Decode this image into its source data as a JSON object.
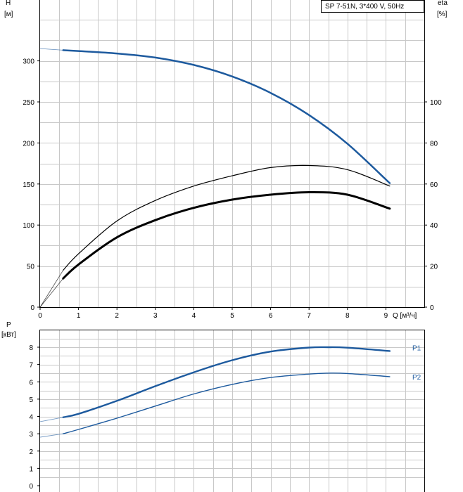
{
  "chart_data": [
    {
      "type": "line",
      "title": "SP 7-51N, 3*400 V, 50Hz",
      "xlabel": "Q [м³/ч]",
      "ylabel": "H\n[м]",
      "y2label": "eta\n[%]",
      "xlim": [
        0,
        10
      ],
      "ylim": [
        0,
        375
      ],
      "y2lim": [
        0,
        150
      ],
      "x_ticks": [
        0,
        1,
        2,
        3,
        4,
        5,
        6,
        7,
        8,
        9
      ],
      "y_ticks": [
        0,
        50,
        100,
        150,
        200,
        250,
        300
      ],
      "y2_ticks": [
        0,
        20,
        40,
        60,
        80,
        100
      ],
      "grid": true,
      "series": [
        {
          "axis": "left",
          "color": "#1d5a9e",
          "x": [
            0,
            0.6,
            1,
            2,
            3,
            4,
            5,
            6,
            7,
            8,
            9.1
          ],
          "y": [
            315,
            313,
            312,
            309,
            304,
            295,
            281,
            261,
            234,
            199,
            151
          ]
        },
        {
          "axis": "right",
          "color": "#000000",
          "x": [
            0,
            0.6,
            1,
            2,
            3,
            4,
            5,
            6,
            7,
            8,
            9.1
          ],
          "y": [
            0,
            18,
            26,
            42,
            52,
            59,
            64,
            68,
            69,
            67,
            59
          ]
        },
        {
          "axis": "left",
          "color": "#000000",
          "x": [
            0,
            0.6,
            1,
            2,
            3,
            4,
            5,
            6,
            7,
            8,
            9.1
          ],
          "y": [
            0,
            35,
            52,
            85,
            106,
            121,
            131,
            137,
            140,
            137,
            120
          ]
        }
      ]
    },
    {
      "type": "line",
      "title": "",
      "xlabel": "",
      "ylabel": "P\n[кВт]",
      "xlim": [
        0,
        10
      ],
      "ylim": [
        0,
        9
      ],
      "y_ticks": [
        0,
        1,
        2,
        3,
        4,
        5,
        6,
        7,
        8
      ],
      "grid": true,
      "series": [
        {
          "name": "P1",
          "color": "#1d5a9e",
          "x": [
            0,
            0.6,
            1,
            2,
            3,
            4,
            5,
            6,
            7,
            7.5,
            8,
            9.1
          ],
          "y": [
            3.7,
            3.95,
            4.15,
            4.9,
            5.75,
            6.55,
            7.25,
            7.75,
            7.98,
            8.0,
            7.97,
            7.78
          ]
        },
        {
          "name": "P2",
          "color": "#1d5a9e",
          "x": [
            0,
            0.6,
            1,
            2,
            3,
            4,
            5,
            6,
            7,
            7.5,
            8,
            9.1
          ],
          "y": [
            2.8,
            3.0,
            3.25,
            3.9,
            4.6,
            5.3,
            5.85,
            6.25,
            6.45,
            6.5,
            6.48,
            6.3
          ]
        }
      ]
    }
  ]
}
